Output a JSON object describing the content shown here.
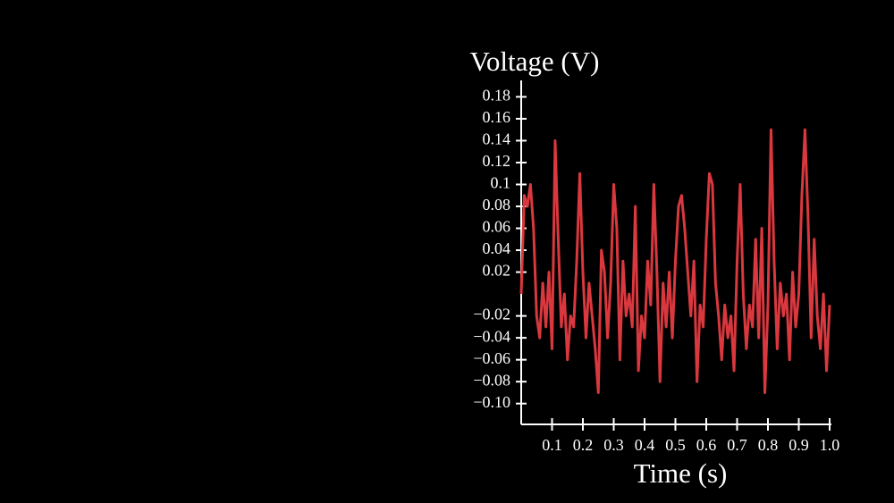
{
  "chart_data": {
    "type": "line",
    "xlabel": "Time (s)",
    "ylabel": "Voltage (V)",
    "color": "#d9383e",
    "x": [
      0.0,
      0.01,
      0.02,
      0.03,
      0.04,
      0.05,
      0.06,
      0.07,
      0.08,
      0.09,
      0.1,
      0.11,
      0.12,
      0.13,
      0.14,
      0.15,
      0.16,
      0.17,
      0.18,
      0.19,
      0.2,
      0.21,
      0.22,
      0.23,
      0.24,
      0.25,
      0.26,
      0.27,
      0.28,
      0.29,
      0.3,
      0.31,
      0.32,
      0.33,
      0.34,
      0.35,
      0.36,
      0.37,
      0.38,
      0.39,
      0.4,
      0.41,
      0.42,
      0.43,
      0.44,
      0.45,
      0.46,
      0.47,
      0.48,
      0.49,
      0.5,
      0.51,
      0.52,
      0.53,
      0.54,
      0.55,
      0.56,
      0.57,
      0.58,
      0.59,
      0.6,
      0.61,
      0.62,
      0.63,
      0.64,
      0.65,
      0.66,
      0.67,
      0.68,
      0.69,
      0.7,
      0.71,
      0.72,
      0.73,
      0.74,
      0.75,
      0.76,
      0.77,
      0.78,
      0.79,
      0.8,
      0.81,
      0.82,
      0.83,
      0.84,
      0.85,
      0.86,
      0.87,
      0.88,
      0.89,
      0.9,
      0.91,
      0.92,
      0.93,
      0.94,
      0.95,
      0.96,
      0.97,
      0.98,
      0.99,
      1.0
    ],
    "values": [
      0.0,
      0.09,
      0.08,
      0.1,
      0.06,
      -0.02,
      -0.04,
      0.01,
      -0.03,
      0.02,
      -0.05,
      0.14,
      0.05,
      -0.03,
      0.0,
      -0.06,
      -0.02,
      -0.03,
      0.03,
      0.11,
      0.02,
      -0.04,
      0.01,
      -0.02,
      -0.05,
      -0.09,
      0.04,
      0.02,
      -0.04,
      0.01,
      0.1,
      0.06,
      -0.06,
      0.03,
      -0.02,
      0.0,
      -0.03,
      0.08,
      -0.07,
      -0.02,
      -0.04,
      0.03,
      -0.01,
      0.1,
      0.02,
      -0.08,
      0.01,
      -0.03,
      0.02,
      -0.04,
      0.03,
      0.08,
      0.09,
      0.06,
      0.02,
      -0.02,
      0.03,
      -0.08,
      -0.01,
      -0.03,
      0.05,
      0.11,
      0.1,
      0.01,
      -0.02,
      -0.06,
      -0.01,
      -0.04,
      -0.02,
      -0.07,
      0.03,
      0.1,
      0.0,
      -0.05,
      -0.01,
      -0.03,
      0.05,
      -0.04,
      0.06,
      -0.09,
      -0.01,
      0.15,
      0.03,
      -0.05,
      0.01,
      -0.02,
      0.0,
      -0.06,
      0.02,
      -0.03,
      0.0,
      0.09,
      0.15,
      0.07,
      -0.04,
      0.05,
      -0.02,
      -0.05,
      0.0,
      -0.07,
      -0.01
    ],
    "xlim": [
      0,
      1.0
    ],
    "xticks": [
      0.1,
      0.2,
      0.3,
      0.4,
      0.5,
      0.6,
      0.7,
      0.8,
      0.9,
      {
        "value": 1.0,
        "label": "1.0"
      }
    ],
    "ylim": [
      -0.119,
      0.195
    ],
    "yticks": [
      0.18,
      0.16,
      0.14,
      0.12,
      0.1,
      0.08,
      0.06,
      0.04,
      0.02,
      {
        "value": -0.02,
        "label": "−0.02"
      },
      {
        "value": -0.04,
        "label": "−0.04"
      },
      {
        "value": -0.06,
        "label": "−0.06"
      },
      {
        "value": -0.08,
        "label": "−0.08"
      },
      {
        "value": -0.1,
        "label": "−0.10"
      }
    ]
  }
}
